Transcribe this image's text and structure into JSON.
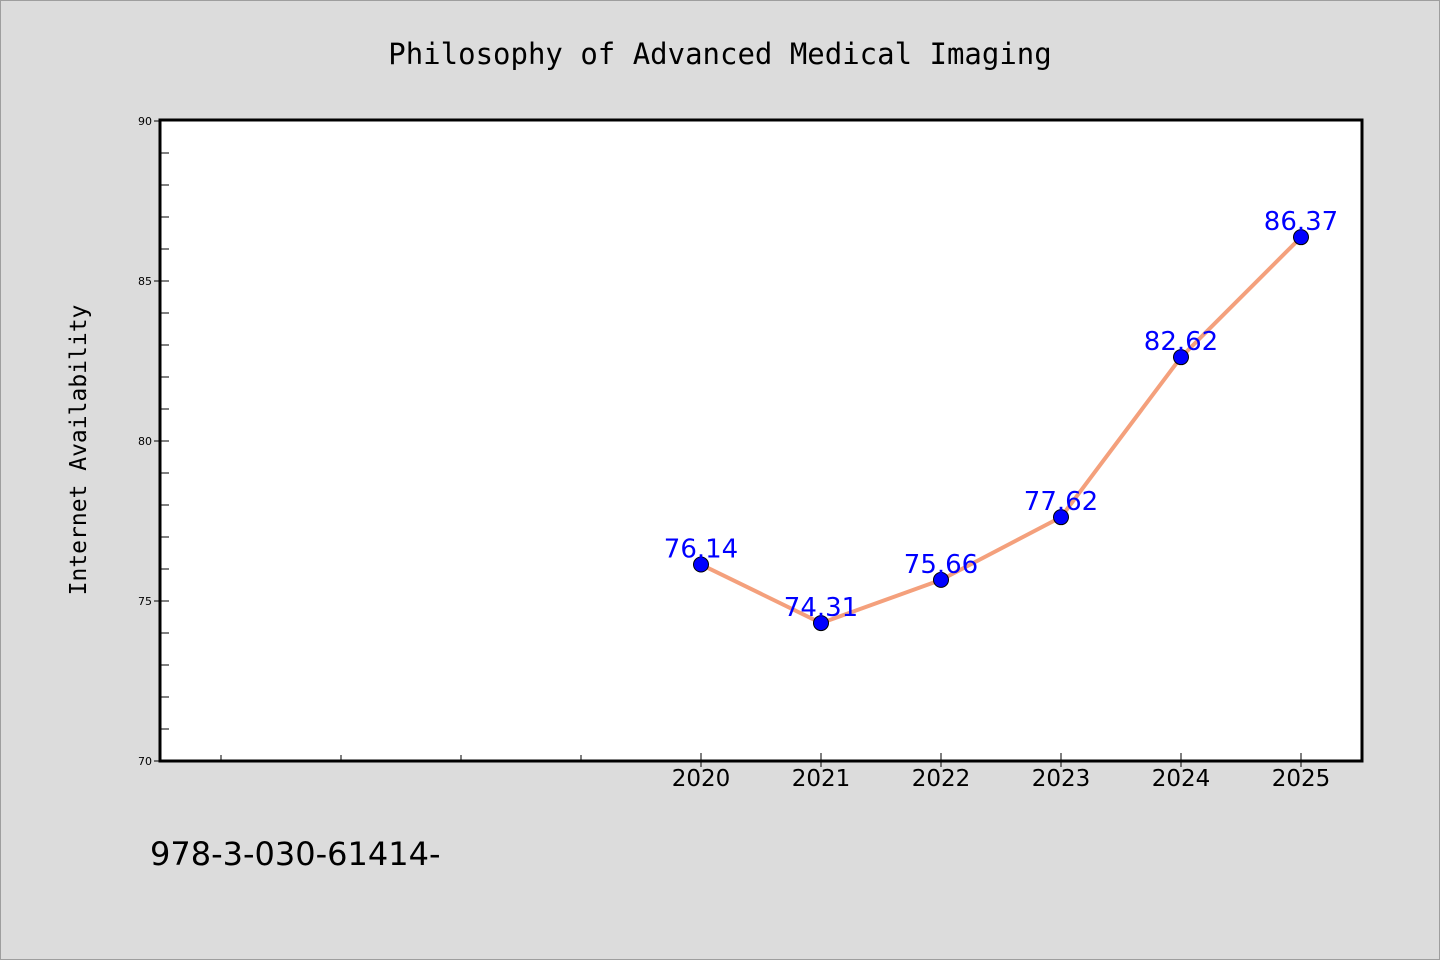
{
  "footer_text": "978-3-030-61414-",
  "colors": {
    "background": "#dcdcdc",
    "plot_background": "#ffffff",
    "line": "#f4a07c",
    "marker": "#0000ff",
    "data_label": "#0000ff",
    "axis": "#000000"
  },
  "chart_data": {
    "type": "line",
    "title": "Philosophy of Advanced Medical Imaging",
    "xlabel": "",
    "ylabel": "Internet Availability",
    "x": [
      2020,
      2021,
      2022,
      2023,
      2024,
      2025
    ],
    "x_tick_labels": [
      "2020",
      "2021",
      "2022",
      "2023",
      "2024",
      "2025"
    ],
    "xlim": [
      2015.5,
      2025.5
    ],
    "ylim": [
      70,
      90
    ],
    "y_ticks": [
      70,
      75,
      80,
      85,
      90
    ],
    "y_tick_labels": [
      "70",
      "75",
      "80",
      "85",
      "90"
    ],
    "series": [
      {
        "values": [
          76.14,
          74.31,
          75.66,
          77.62,
          82.62,
          86.37
        ],
        "labels": [
          "76.14",
          "74.31",
          "75.66",
          "77.62",
          "82.62",
          "86.37"
        ]
      }
    ],
    "grid": false,
    "legend": "none"
  }
}
